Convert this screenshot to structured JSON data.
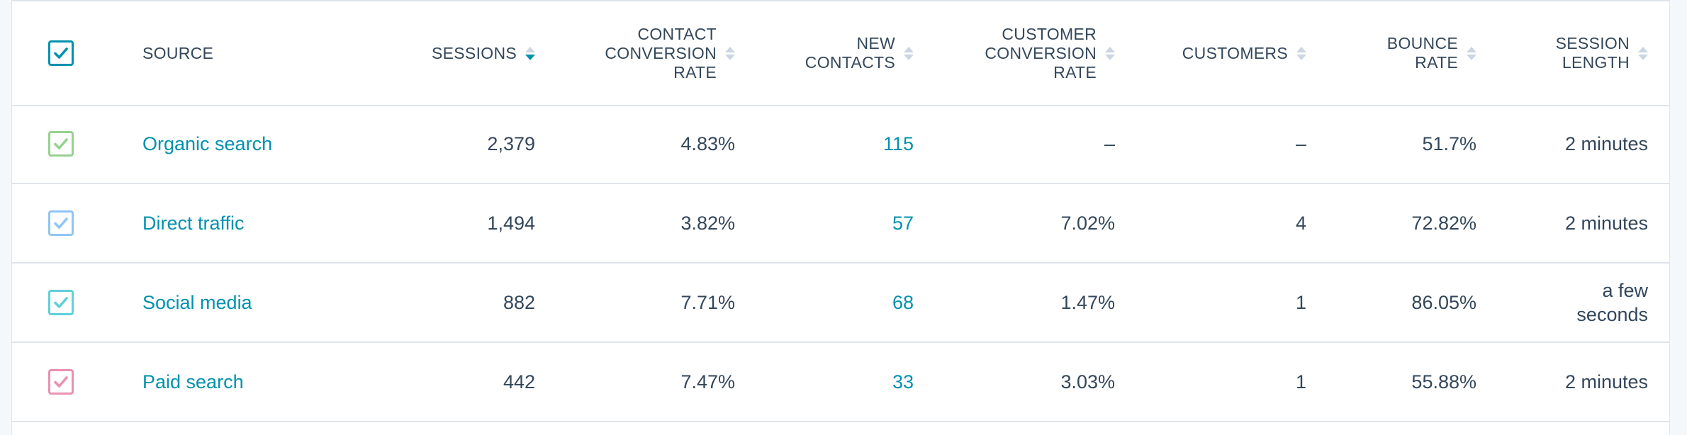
{
  "table": {
    "headers": {
      "source": "SOURCE",
      "sessions": "SESSIONS",
      "contact_conversion_rate_line1": "CONTACT",
      "contact_conversion_rate_line2": "CONVERSION",
      "contact_conversion_rate_line3": "RATE",
      "new_contacts_line1": "NEW",
      "new_contacts_line2": "CONTACTS",
      "customer_conversion_rate_line1": "CUSTOMER",
      "customer_conversion_rate_line2": "CONVERSION",
      "customer_conversion_rate_line3": "RATE",
      "customers": "CUSTOMERS",
      "bounce_rate_line1": "BOUNCE",
      "bounce_rate_line2": "RATE",
      "session_length_line1": "SESSION",
      "session_length_line2": "LENGTH"
    },
    "select_all_checked": true,
    "select_all_color": "#0091ae",
    "rows": [
      {
        "checkbox_color": "#95d28f",
        "source": "Organic search",
        "sessions": "2,379",
        "contact_conversion_rate": "4.83%",
        "new_contacts": "115",
        "customer_conversion_rate": "–",
        "customers": "–",
        "bounce_rate": "51.7%",
        "session_length_line1": "2 minutes",
        "session_length_line2": ""
      },
      {
        "checkbox_color": "#8ec5f5",
        "source": "Direct traffic",
        "sessions": "1,494",
        "contact_conversion_rate": "3.82%",
        "new_contacts": "57",
        "customer_conversion_rate": "7.02%",
        "customers": "4",
        "bounce_rate": "72.82%",
        "session_length_line1": "2 minutes",
        "session_length_line2": ""
      },
      {
        "checkbox_color": "#5fd0d8",
        "source": "Social media",
        "sessions": "882",
        "contact_conversion_rate": "7.71%",
        "new_contacts": "68",
        "customer_conversion_rate": "1.47%",
        "customers": "1",
        "bounce_rate": "86.05%",
        "session_length_line1": "a few",
        "session_length_line2": "seconds"
      },
      {
        "checkbox_color": "#ea90b1",
        "source": "Paid search",
        "sessions": "442",
        "contact_conversion_rate": "7.47%",
        "new_contacts": "33",
        "customer_conversion_rate": "3.03%",
        "customers": "1",
        "bounce_rate": "55.88%",
        "session_length_line1": "2 minutes",
        "session_length_line2": ""
      }
    ]
  }
}
